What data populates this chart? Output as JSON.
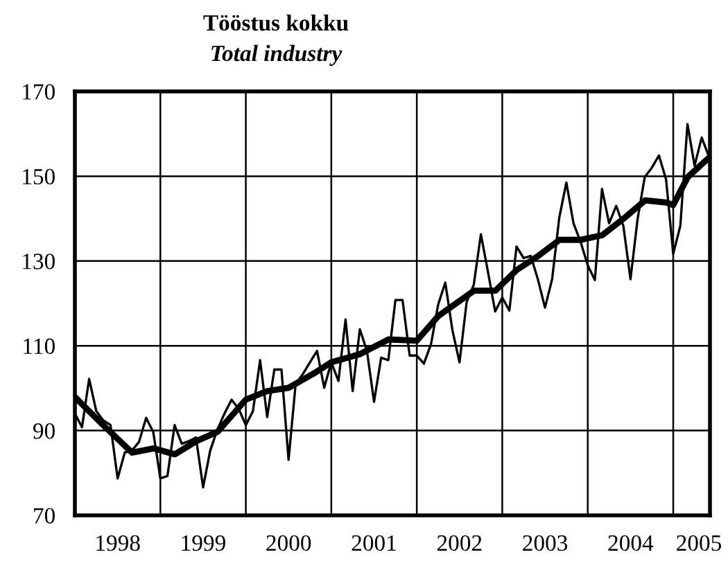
{
  "chart_data": {
    "type": "line",
    "title": "Tööstus kokku",
    "subtitle": "Total industry",
    "x": [
      1998.0,
      1998.0833,
      1998.1667,
      1998.25,
      1998.3333,
      1998.4167,
      1998.5,
      1998.5833,
      1998.6667,
      1998.75,
      1998.8333,
      1998.9167,
      1999.0,
      1999.0833,
      1999.1667,
      1999.25,
      1999.3333,
      1999.4167,
      1999.5,
      1999.5833,
      1999.6667,
      1999.75,
      1999.8333,
      1999.9167,
      2000.0,
      2000.0833,
      2000.1667,
      2000.25,
      2000.3333,
      2000.4167,
      2000.5,
      2000.5833,
      2000.6667,
      2000.75,
      2000.8333,
      2000.9167,
      2001.0,
      2001.0833,
      2001.1667,
      2001.25,
      2001.3333,
      2001.4167,
      2001.5,
      2001.5833,
      2001.6667,
      2001.75,
      2001.8333,
      2001.9167,
      2002.0,
      2002.0833,
      2002.1667,
      2002.25,
      2002.3333,
      2002.4167,
      2002.5,
      2002.5833,
      2002.6667,
      2002.75,
      2002.8333,
      2002.9167,
      2003.0,
      2003.0833,
      2003.1667,
      2003.25,
      2003.3333,
      2003.4167,
      2003.5,
      2003.5833,
      2003.6667,
      2003.75,
      2003.8333,
      2003.9167,
      2004.0,
      2004.0833,
      2004.1667,
      2004.25,
      2004.3333,
      2004.4167,
      2004.5,
      2004.5833,
      2004.6667,
      2004.75,
      2004.8333,
      2004.9167,
      2005.0,
      2005.0833,
      2005.1667,
      2005.25,
      2005.3333,
      2005.4167
    ],
    "series": [
      {
        "color": "#000000",
        "values": [
          94.0,
          90.8,
          102.2,
          94.6,
          92.4,
          91.3,
          78.7,
          84.8,
          85.3,
          87.3,
          93.0,
          89.7,
          78.7,
          79.3,
          91.3,
          86.9,
          87.5,
          88.4,
          76.6,
          85.3,
          90.2,
          94.0,
          97.3,
          95.1,
          91.3,
          94.6,
          106.6,
          93.2,
          104.4,
          104.4,
          83.1,
          101.1,
          103.3,
          106.1,
          108.8,
          100.1,
          106.1,
          101.7,
          116.2,
          99.3,
          113.9,
          108.8,
          96.8,
          107.2,
          106.6,
          120.8,
          120.8,
          107.7,
          107.7,
          105.8,
          110.4,
          119.7,
          124.9,
          113.7,
          106.1,
          120.3,
          124.4,
          136.3,
          127.4,
          118.1,
          121.4,
          118.3,
          133.4,
          130.7,
          131.2,
          125.7,
          119.0,
          125.7,
          140.2,
          148.5,
          138.9,
          134.5,
          129.0,
          125.5,
          147.0,
          138.9,
          143.0,
          138.3,
          125.7,
          139.9,
          149.8,
          152.0,
          154.9,
          149.2,
          131.7,
          138.3,
          162.3,
          152.5,
          159.1,
          154.7
        ]
      },
      {
        "color": "#000000",
        "x": [
          1998.0,
          1998.33,
          1998.67,
          1998.92,
          1999.17,
          1999.42,
          1999.67,
          2000.0,
          2000.25,
          2000.5,
          2000.83,
          2001.0,
          2001.33,
          2001.67,
          2002.0,
          2002.25,
          2002.67,
          2002.92,
          2003.17,
          2003.42,
          2003.67,
          2003.92,
          2004.17,
          2004.42,
          2004.67,
          2004.92,
          2005.0,
          2005.17,
          2005.42
        ],
        "values": [
          97.9,
          91.3,
          84.8,
          85.8,
          84.4,
          87.5,
          89.7,
          97.3,
          99.3,
          100.1,
          103.9,
          106.1,
          108.0,
          111.5,
          111.2,
          117.0,
          123.0,
          123.0,
          127.9,
          131.2,
          135.0,
          135.0,
          136.1,
          140.0,
          144.3,
          143.8,
          143.2,
          149.8,
          154.4
        ]
      }
    ],
    "xlim": [
      1998.0,
      2005.43
    ],
    "xticks": [
      {
        "value": 1998.5,
        "label": "1998"
      },
      {
        "value": 1999,
        "label": null
      },
      {
        "value": 1999.5,
        "label": "1999"
      },
      {
        "value": 2000,
        "label": null
      },
      {
        "value": 2000.5,
        "label": "2000"
      },
      {
        "value": 2001,
        "label": null
      },
      {
        "value": 2001.5,
        "label": "2001"
      },
      {
        "value": 2002,
        "label": null
      },
      {
        "value": 2002.5,
        "label": "2002"
      },
      {
        "value": 2003,
        "label": null
      },
      {
        "value": 2003.5,
        "label": "2003"
      },
      {
        "value": 2004,
        "label": null
      },
      {
        "value": 2004.5,
        "label": "2004"
      },
      {
        "value": 2005,
        "label": null
      },
      {
        "value": 2005.3,
        "label": "2005"
      }
    ],
    "ylim": [
      70,
      170
    ],
    "yticks": [
      70,
      90,
      110,
      130,
      150,
      170
    ],
    "grid": true,
    "legend": false,
    "marker": "none",
    "line_style": "solid"
  }
}
